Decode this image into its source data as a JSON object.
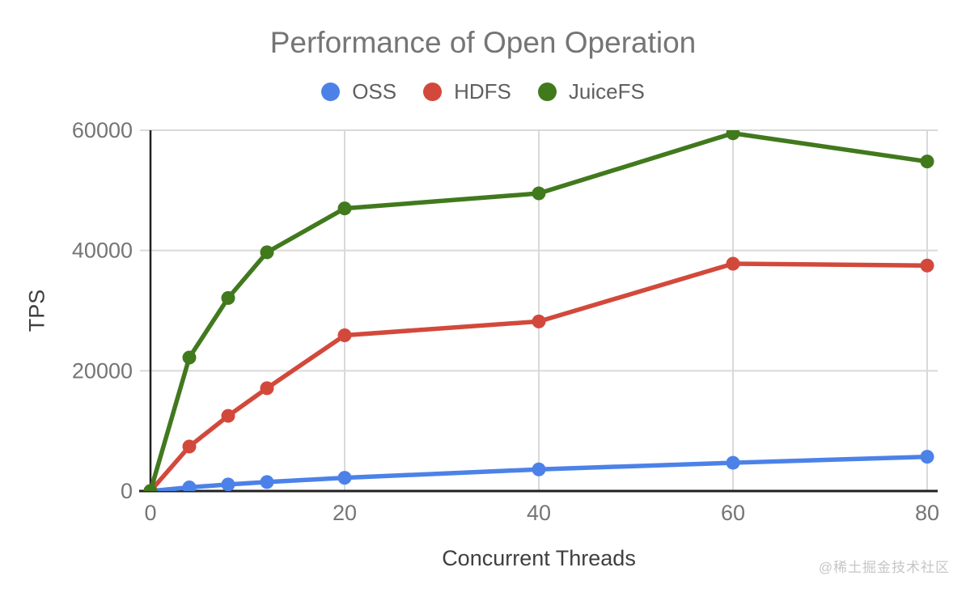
{
  "watermark": {
    "text": "@稀土掘金技术社区"
  },
  "chart_data": {
    "type": "line",
    "title": "Performance of Open Operation",
    "xlabel": "Concurrent Threads",
    "ylabel": "TPS",
    "x": [
      0,
      4,
      8,
      12,
      20,
      40,
      60,
      80
    ],
    "series": [
      {
        "name": "OSS",
        "color": "#4c82e8",
        "values": [
          0,
          600,
          1100,
          1500,
          2200,
          3600,
          4700,
          5700
        ]
      },
      {
        "name": "HDFS",
        "color": "#d2493b",
        "values": [
          0,
          7400,
          12500,
          17100,
          25900,
          28200,
          37800,
          37500
        ]
      },
      {
        "name": "JuiceFS",
        "color": "#41791d",
        "values": [
          0,
          22200,
          32100,
          39700,
          47000,
          49500,
          59500,
          54800
        ]
      }
    ],
    "xlim": [
      0,
      80
    ],
    "ylim": [
      0,
      60000
    ],
    "xticks": [
      0,
      20,
      40,
      60,
      80
    ],
    "yticks": [
      0,
      20000,
      40000,
      60000
    ],
    "grid": true,
    "legend_position": "top",
    "colors": {
      "axis": "#212121",
      "grid": "#d9d9d9",
      "tick_label": "#757575",
      "title": "#757575",
      "axis_title": "#3f3f3f",
      "legend_label": "#5f5f5f",
      "watermark": "#c6c6c6",
      "background": "#ffffff"
    }
  }
}
